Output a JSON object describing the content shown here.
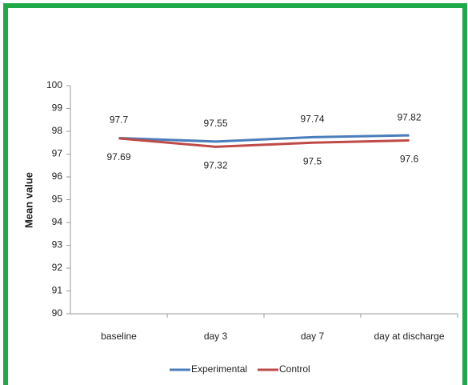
{
  "chart_data": {
    "type": "line",
    "y_label": "Mean value",
    "categories": [
      "baseline",
      "day 3",
      "day 7",
      "day at discharge"
    ],
    "series": [
      {
        "name": "Experimental",
        "color": "#4a7ebb",
        "values": [
          97.7,
          97.55,
          97.74,
          97.82
        ]
      },
      {
        "name": "Control",
        "color": "#be4b48",
        "values": [
          97.69,
          97.32,
          97.5,
          97.6
        ]
      }
    ],
    "ylim": [
      90,
      100
    ],
    "yticks": [
      90,
      91,
      92,
      93,
      94,
      95,
      96,
      97,
      98,
      99,
      100
    ]
  }
}
